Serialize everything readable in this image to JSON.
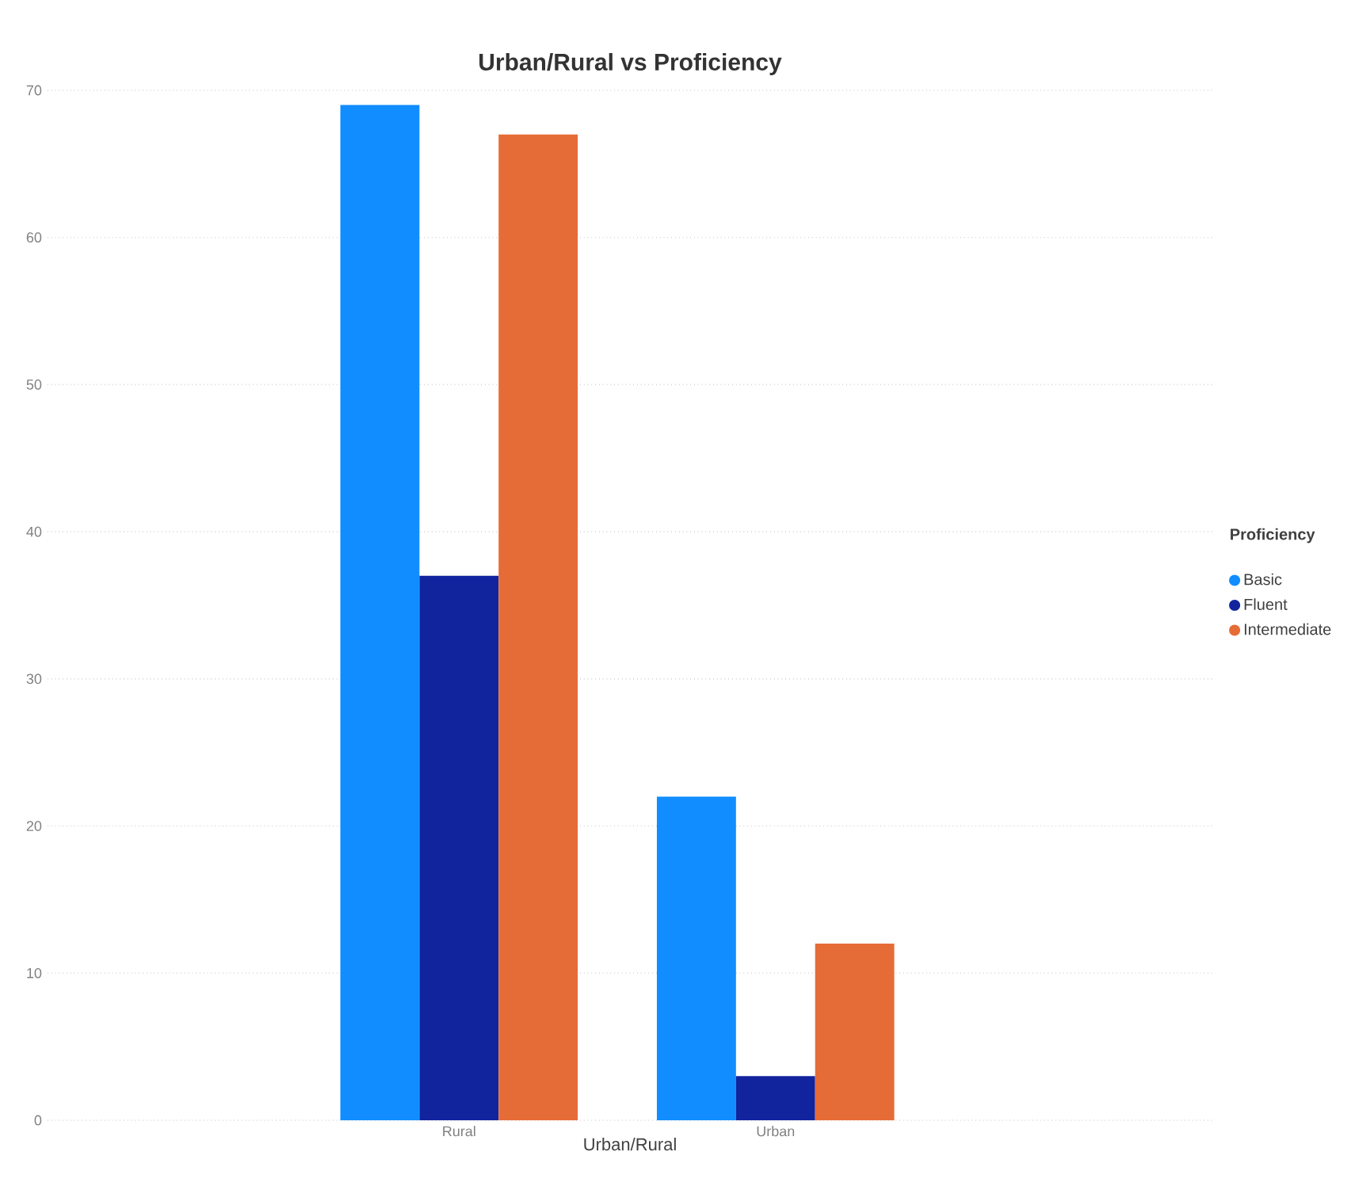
{
  "chart_data": {
    "type": "bar",
    "title": "Urban/Rural vs Proficiency",
    "xlabel": "Urban/Rural",
    "legend_title": "Proficiency",
    "categories": [
      "Rural",
      "Urban"
    ],
    "series": [
      {
        "name": "Basic",
        "color": "#118dff",
        "values": [
          69,
          22
        ]
      },
      {
        "name": "Fluent",
        "color": "#12239e",
        "values": [
          37,
          3
        ]
      },
      {
        "name": "Intermediate",
        "color": "#e66c37",
        "values": [
          67,
          12
        ]
      }
    ],
    "ylim": [
      0,
      70
    ],
    "yticks": [
      0,
      10,
      20,
      30,
      40,
      50,
      60,
      70
    ],
    "grid": "y",
    "legend": "right"
  }
}
